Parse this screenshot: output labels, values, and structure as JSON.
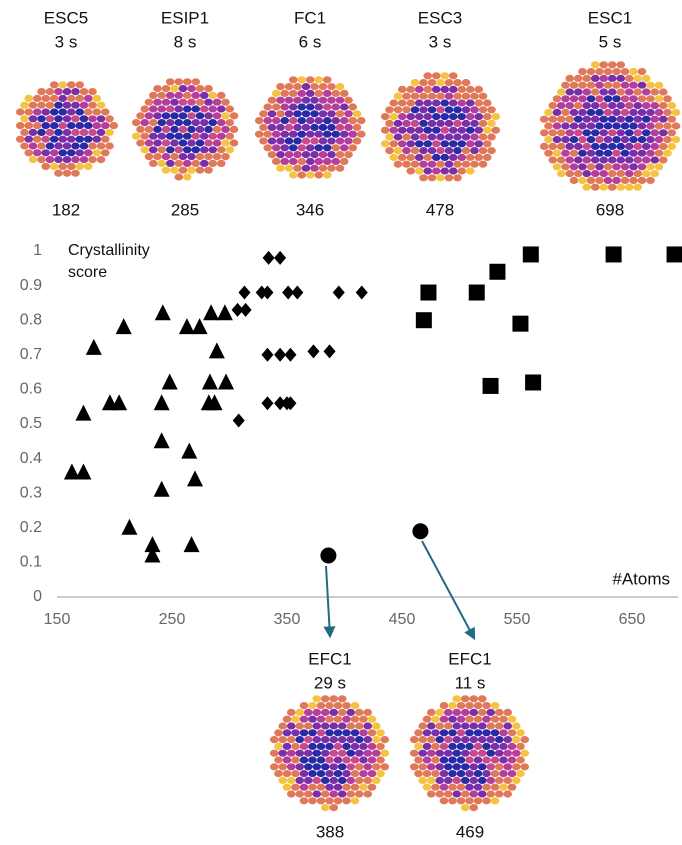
{
  "top_panels": [
    {
      "name": "ESC5",
      "time": "3 s",
      "atoms": "182"
    },
    {
      "name": "ESIP1",
      "time": "8 s",
      "atoms": "285"
    },
    {
      "name": "FC1",
      "time": "6 s",
      "atoms": "346"
    },
    {
      "name": "ESC3",
      "time": "3 s",
      "atoms": "478"
    },
    {
      "name": "ESC1",
      "time": "5 s",
      "atoms": "698"
    }
  ],
  "bottom_panels": [
    {
      "name": "EFC1",
      "time": "29 s",
      "atoms": "388"
    },
    {
      "name": "EFC1",
      "time": "11 s",
      "atoms": "469"
    }
  ],
  "chart_data": {
    "type": "scatter",
    "y_label": "Crystallinity score",
    "x_label": "#Atoms",
    "xlim": [
      150,
      690
    ],
    "xticks": [
      150,
      250,
      350,
      450,
      550,
      650
    ],
    "ylim": [
      0,
      1
    ],
    "yticks": [
      0,
      0.1,
      0.2,
      0.3,
      0.4,
      0.5,
      0.6,
      0.7,
      0.8,
      0.9,
      1
    ],
    "series": [
      {
        "marker": "triangle",
        "color": "#000000",
        "x": [
          163,
          173,
          173,
          182,
          196,
          204,
          208,
          213,
          233,
          233,
          242,
          241,
          241,
          241,
          248,
          263,
          274,
          265,
          270,
          267,
          284,
          296,
          289,
          283,
          297,
          282,
          287
        ],
        "values": [
          0.36,
          0.36,
          0.53,
          0.72,
          0.56,
          0.56,
          0.78,
          0.2,
          0.15,
          0.12,
          0.82,
          0.56,
          0.45,
          0.31,
          0.62,
          0.78,
          0.78,
          0.42,
          0.34,
          0.15,
          0.82,
          0.82,
          0.71,
          0.62,
          0.62,
          0.56,
          0.56
        ]
      },
      {
        "marker": "diamond",
        "color": "#000000",
        "x": [
          308,
          307,
          314,
          313,
          328,
          334,
          344,
          333,
          351,
          359,
          333,
          344,
          353,
          333,
          344,
          350,
          353,
          373,
          387,
          395,
          415
        ],
        "values": [
          0.51,
          0.83,
          0.83,
          0.88,
          0.88,
          0.98,
          0.98,
          0.88,
          0.88,
          0.88,
          0.7,
          0.7,
          0.7,
          0.56,
          0.56,
          0.56,
          0.56,
          0.71,
          0.71,
          0.88,
          0.88
        ]
      },
      {
        "marker": "square",
        "color": "#000000",
        "x": [
          469,
          473,
          515,
          533,
          527,
          553,
          562,
          564,
          634,
          687
        ],
        "values": [
          0.8,
          0.88,
          0.88,
          0.94,
          0.61,
          0.79,
          0.99,
          0.62,
          0.99,
          0.99
        ]
      },
      {
        "marker": "circle",
        "color": "#000000",
        "x": [
          386,
          466
        ],
        "values": [
          0.12,
          0.19
        ]
      }
    ]
  }
}
